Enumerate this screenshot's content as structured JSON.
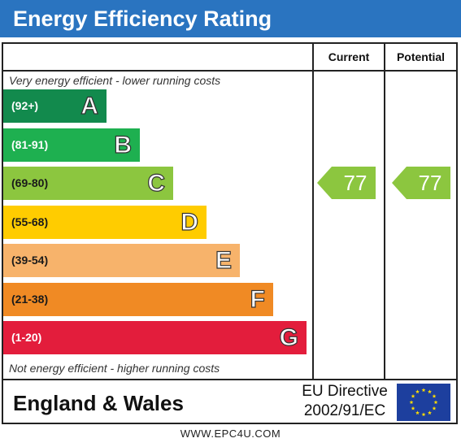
{
  "title": "Energy Efficiency Rating",
  "columns": {
    "current": "Current",
    "potential": "Potential"
  },
  "notes": {
    "top": "Very energy efficient - lower running costs",
    "bottom": "Not energy efficient - higher running costs"
  },
  "footer": {
    "region": "England & Wales",
    "directive_line1": "EU Directive",
    "directive_line2": "2002/91/EC",
    "website": "WWW.EPC4U.COM"
  },
  "chart_data": {
    "type": "bar",
    "bands": [
      {
        "range": "(92+)",
        "letter": "A",
        "color": "#128a4d",
        "range_color": "#ffffff"
      },
      {
        "range": "(81-91)",
        "letter": "B",
        "color": "#1eb050",
        "range_color": "#ffffff"
      },
      {
        "range": "(69-80)",
        "letter": "C",
        "color": "#8cc63f",
        "range_color": "#1a1a1a"
      },
      {
        "range": "(55-68)",
        "letter": "D",
        "color": "#ffcc00",
        "range_color": "#1a1a1a"
      },
      {
        "range": "(39-54)",
        "letter": "E",
        "color": "#f7b36b",
        "range_color": "#1a1a1a"
      },
      {
        "range": "(21-38)",
        "letter": "F",
        "color": "#f08a24",
        "range_color": "#1a1a1a"
      },
      {
        "range": "(1-20)",
        "letter": "G",
        "color": "#e31d3c",
        "range_color": "#ffffff"
      }
    ],
    "current": {
      "value": 77,
      "band": "C",
      "color": "#8cc63f"
    },
    "potential": {
      "value": 77,
      "band": "C",
      "color": "#8cc63f"
    }
  }
}
